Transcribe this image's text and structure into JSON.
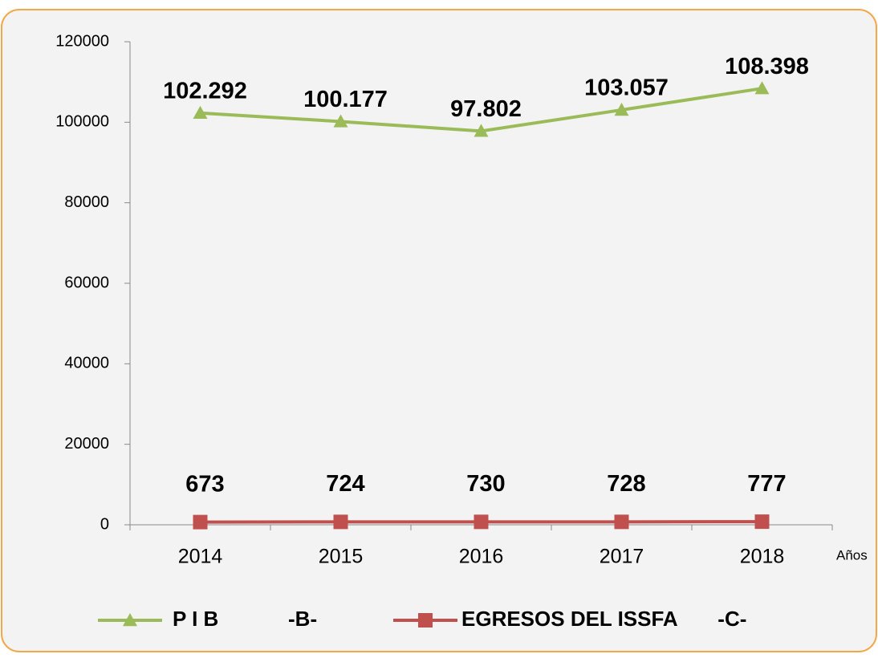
{
  "chart_data": {
    "type": "line",
    "categories": [
      "2014",
      "2015",
      "2016",
      "2017",
      "2018"
    ],
    "x_label": "Años",
    "series": [
      {
        "name": "P I B            -B-",
        "color": "#9bbb59",
        "marker": "triangle",
        "values": [
          102292,
          100177,
          97802,
          103057,
          108398
        ],
        "value_labels": [
          "102.292",
          "100.177",
          "97.802",
          "103.057",
          "108.398"
        ]
      },
      {
        "name": "EGRESOS DEL ISSFA       -C-",
        "color": "#c0504d",
        "marker": "square",
        "values": [
          673,
          724,
          730,
          728,
          777
        ]
      }
    ],
    "ylim": [
      0,
      120000
    ],
    "yticks": [
      0,
      20000,
      40000,
      60000,
      80000,
      100000,
      120000
    ],
    "legend": "bottom"
  }
}
